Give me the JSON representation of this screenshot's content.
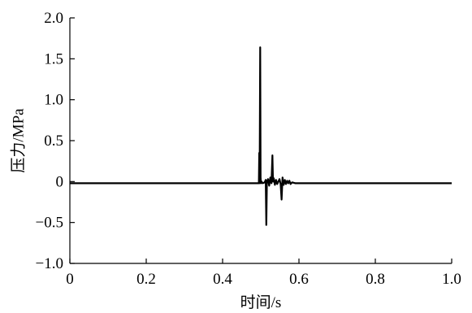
{
  "chart_data": {
    "type": "line",
    "title": "",
    "xlabel": "时间/s",
    "ylabel": "压力/MPa",
    "xlim": [
      0,
      1.0
    ],
    "ylim": [
      -1.0,
      2.0
    ],
    "x_ticks": [
      0,
      0.2,
      0.4,
      0.6,
      0.8,
      1.0
    ],
    "x_tick_labels": [
      "0",
      "0.2",
      "0.4",
      "0.6",
      "0.8",
      "1.0"
    ],
    "y_ticks": [
      -1.0,
      -0.5,
      0,
      0.5,
      1.0,
      1.5,
      2.0
    ],
    "y_tick_labels": [
      "−1.0",
      "−0.5",
      "0",
      "0.5",
      "1.0",
      "1.5",
      "2.0"
    ],
    "grid": false,
    "legend": "none",
    "series": [
      {
        "color": "#000000",
        "x": [
          0,
          0.495,
          0.496,
          0.497,
          0.4985,
          0.4995,
          0.5005,
          0.502,
          0.505,
          0.51,
          0.513,
          0.5145,
          0.516,
          0.519,
          0.522,
          0.525,
          0.528,
          0.5305,
          0.532,
          0.534,
          0.537,
          0.54,
          0.543,
          0.546,
          0.549,
          0.552,
          0.5545,
          0.557,
          0.56,
          0.563,
          0.566,
          0.569,
          0.572,
          0.575,
          0.578,
          0.582,
          0.59,
          0.6,
          0.65,
          0.7,
          0.8,
          0.9,
          1.0
        ],
        "y": [
          -0.02,
          -0.02,
          0.35,
          -0.02,
          1.64,
          0.05,
          -0.02,
          0.0,
          -0.02,
          -0.01,
          0.02,
          -0.53,
          0.0,
          0.03,
          -0.05,
          0.05,
          -0.02,
          0.32,
          0.0,
          0.04,
          -0.04,
          0.02,
          -0.03,
          0.0,
          0.03,
          -0.03,
          -0.22,
          0.05,
          -0.04,
          0.02,
          -0.03,
          0.01,
          -0.02,
          0.01,
          -0.03,
          -0.01,
          -0.02,
          -0.02,
          -0.02,
          -0.02,
          -0.02,
          -0.02,
          -0.02
        ]
      }
    ]
  }
}
